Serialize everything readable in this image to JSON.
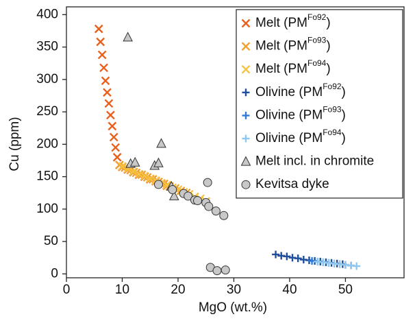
{
  "chart_data": {
    "type": "scatter",
    "xlabel": "MgO (wt.%)",
    "ylabel": "Cu (ppm)",
    "xlim": [
      0,
      60.5
    ],
    "ylim": [
      -6,
      412
    ],
    "xticks": [
      0,
      10,
      20,
      30,
      40,
      50
    ],
    "yticks": [
      0,
      50,
      100,
      150,
      200,
      250,
      300,
      350,
      400
    ],
    "legend": "upper right",
    "series": [
      {
        "name": "Melt (PM",
        "name_sup": "Fo92",
        "name_end": ")",
        "marker": "x",
        "color": "#e8601c",
        "x": [
          5.8,
          6.1,
          6.4,
          6.7,
          7.0,
          7.3,
          7.6,
          7.9,
          8.2,
          8.5,
          8.8,
          9.1,
          9.5,
          10,
          11,
          12,
          13,
          14,
          15,
          16,
          17,
          18
        ],
        "values": [
          378,
          358,
          338,
          318,
          298,
          280,
          263,
          245,
          228,
          211,
          195,
          180,
          168,
          165,
          161,
          157,
          153,
          150,
          146,
          143,
          139,
          136
        ]
      },
      {
        "name": "Melt (PM",
        "name_sup": "Fo93",
        "name_end": ")",
        "marker": "x",
        "color": "#f0a030",
        "x": [
          9.5,
          10.5,
          11.5,
          12.5,
          13.5,
          14.5,
          15.5,
          16.5,
          17.5,
          18.5,
          19.5,
          20.5,
          21.5
        ],
        "values": [
          168,
          164,
          160,
          156,
          153,
          149,
          146,
          142,
          139,
          135,
          132,
          128,
          125
        ]
      },
      {
        "name": "Melt (PM",
        "name_sup": "Fo94",
        "name_end": ")",
        "marker": "x",
        "color": "#f5c242",
        "x": [
          10,
          11,
          12,
          13,
          14,
          15,
          16,
          17,
          18,
          19,
          20,
          21,
          22,
          23,
          24,
          25
        ],
        "values": [
          166,
          162,
          158,
          154,
          151,
          147,
          144,
          140,
          137,
          133,
          130,
          126,
          123,
          119,
          116,
          112
        ]
      },
      {
        "name": "Olivine (PM",
        "name_sup": "Fo92",
        "name_end": ")",
        "marker": "plus",
        "color": "#1f4e9c",
        "x": [
          37.5,
          38.5,
          39.5,
          40.5,
          41.5,
          42.5,
          43.5,
          44.5,
          45.5,
          46.5,
          47.5,
          48.5,
          49.5
        ],
        "values": [
          30,
          28,
          27,
          25,
          24,
          22,
          21,
          20,
          19,
          18,
          17,
          16,
          15
        ]
      },
      {
        "name": "Olivine (PM",
        "name_sup": "Fo93",
        "name_end": ")",
        "marker": "plus",
        "color": "#2e7bd6",
        "x": [
          44,
          45,
          46,
          47,
          48,
          49,
          50,
          51
        ],
        "values": [
          20,
          19,
          18,
          17,
          16,
          15,
          14,
          13
        ]
      },
      {
        "name": "Olivine (PM",
        "name_sup": "Fo94",
        "name_end": ")",
        "marker": "plus",
        "color": "#8ec8f0",
        "x": [
          45,
          46,
          47,
          48,
          49,
          50,
          51,
          52
        ],
        "values": [
          19,
          18,
          17,
          16,
          15,
          14,
          13,
          12
        ]
      },
      {
        "name": "Melt incl. in chromite",
        "marker": "triangle",
        "color": "#c8c8c8",
        "x": [
          11,
          11.5,
          12.3,
          15.8,
          16.5,
          17,
          18.8,
          19.3
        ],
        "values": [
          365,
          170,
          172,
          167,
          171,
          201,
          135,
          120
        ]
      },
      {
        "name": "Kevitsa dyke",
        "marker": "circle",
        "color": "#c8c8c8",
        "x": [
          16.5,
          19,
          21,
          21.8,
          23,
          23.5,
          25,
          25.5,
          25.3,
          26.8,
          28.2,
          25.8,
          27,
          28.5
        ],
        "values": [
          138,
          130,
          124,
          120,
          114,
          113,
          110,
          104,
          141,
          97,
          90,
          10,
          5,
          6
        ]
      }
    ]
  }
}
